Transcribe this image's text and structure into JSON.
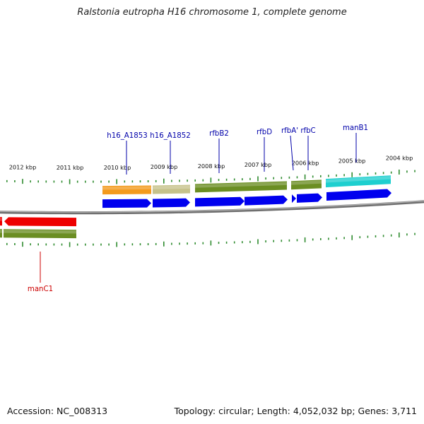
{
  "title": "Ralstonia eutropha H16 chromosome 1, complete genome",
  "footer": {
    "accession": "Accession: NC_008313",
    "summary": "Topology: circular; Length: 4,052,032 bp; Genes: 3,711"
  },
  "scale": {
    "unit_label_suffix": " kbp",
    "ticks_kbp": [
      2012,
      2011,
      2010,
      2009,
      2008,
      2007,
      2006,
      2005,
      2004
    ]
  },
  "colors": {
    "backbone": "#8c8c8c",
    "tick": "#2e8b2e",
    "cds_forward": "#0000ee",
    "gene_label_forward": "#0000aa",
    "gene_label_reverse": "#cc0000",
    "orange": "#f39a1c",
    "khaki": "#c6c28a",
    "olive": "#6b8e23",
    "teal": "#1ecfcf",
    "red": "#ee0000"
  },
  "genes": [
    {
      "name": "h16_A1853",
      "strand": "forward"
    },
    {
      "name": "h16_A1852",
      "strand": "forward"
    },
    {
      "name": "rfbB2",
      "strand": "forward"
    },
    {
      "name": "rfbD",
      "strand": "forward"
    },
    {
      "name": "rfbA'",
      "strand": "forward"
    },
    {
      "name": "rfbC",
      "strand": "forward"
    },
    {
      "name": "manB1",
      "strand": "forward"
    },
    {
      "name": "manC1",
      "strand": "reverse"
    }
  ]
}
